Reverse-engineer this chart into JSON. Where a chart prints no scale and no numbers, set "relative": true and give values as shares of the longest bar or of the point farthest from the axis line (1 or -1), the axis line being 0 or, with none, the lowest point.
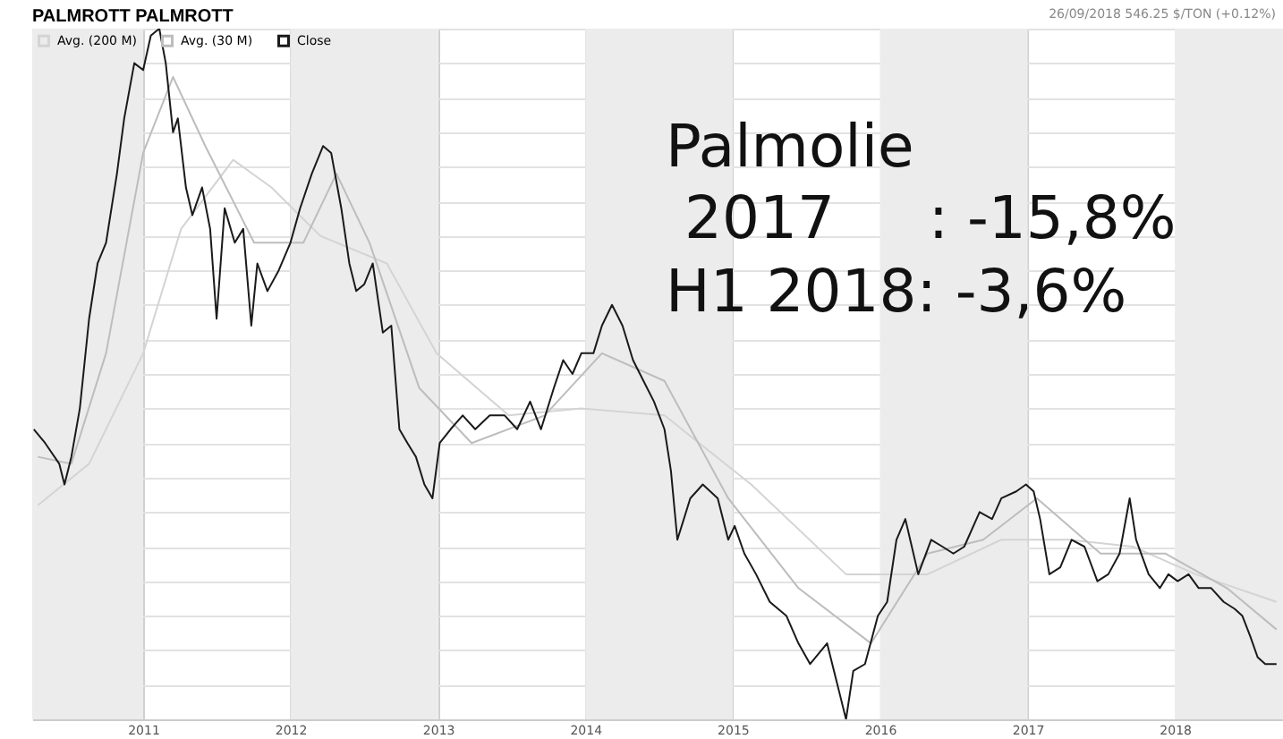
{
  "chart_data": {
    "type": "line",
    "title": "PALMROTT PALMROTT",
    "relative": true,
    "grid": true,
    "legend": "top left",
    "annotations": [
      "26/09/2018 546.25 $/TON (+0.12%)",
      "Palmolie",
      " 2017     : -15,8%",
      "H1 2018: -3,6%"
    ],
    "xlim": [
      "2010-04-01",
      "2018-09-26"
    ],
    "xticks": [
      {
        "value": "2011-01-01",
        "label": "2011"
      },
      {
        "value": "2012-01-01",
        "label": "2012"
      },
      {
        "value": "2013-01-01",
        "label": "2013"
      },
      {
        "value": "2014-01-01",
        "label": "2014"
      },
      {
        "value": "2015-01-01",
        "label": "2015"
      },
      {
        "value": "2016-01-01",
        "label": "2016"
      },
      {
        "value": "2017-01-01",
        "label": "2017"
      },
      {
        "value": "2018-01-01",
        "label": "2018"
      }
    ],
    "bands": [
      {
        "axis": "x",
        "from": "2010-04-01",
        "to": "2011-01-01",
        "color": "#ececec"
      },
      {
        "axis": "x",
        "from": "2012-01-01",
        "to": "2013-01-01",
        "color": "#ececec"
      },
      {
        "axis": "x",
        "from": "2014-01-01",
        "to": "2015-01-01",
        "color": "#ececec"
      },
      {
        "axis": "x",
        "from": "2016-01-01",
        "to": "2017-01-01",
        "color": "#ececec"
      },
      {
        "axis": "x",
        "from": "2018-01-01",
        "to": "2018-09-26",
        "color": "#ececec"
      }
    ],
    "series": [
      {
        "name": "Avg. (200 M)",
        "color": "#d4d4d4",
        "x": [
          "2010-04-15",
          "2010-08-20",
          "2011-01-01",
          "2011-04-05",
          "2011-08-12",
          "2011-11-15",
          "2012-03-15",
          "2012-08-27",
          "2012-12-28",
          "2013-06-25",
          "2013-12-22",
          "2014-07-16",
          "2015-02-16",
          "2015-10-09",
          "2016-04-28",
          "2016-10-28",
          "2017-04-12",
          "2017-09-19",
          "2018-02-22",
          "2018-09-10"
        ],
        "values": [
          0.31,
          0.37,
          0.53,
          0.71,
          0.81,
          0.77,
          0.7,
          0.66,
          0.53,
          0.44,
          0.45,
          0.44,
          0.34,
          0.21,
          0.21,
          0.26,
          0.26,
          0.25,
          0.21,
          0.17
        ]
      },
      {
        "name": "Avg. (30 M)",
        "color": "#bdbdbd",
        "x": [
          "2010-04-15",
          "2010-07-07",
          "2010-10-01",
          "2011-01-01",
          "2011-03-16",
          "2011-06-04",
          "2011-10-03",
          "2012-02-02",
          "2012-04-24",
          "2012-07-15",
          "2012-11-15",
          "2013-03-25",
          "2013-09-22",
          "2014-02-11",
          "2014-07-16",
          "2014-12-21",
          "2015-06-13",
          "2015-12-10",
          "2016-04-28",
          "2016-09-13",
          "2017-01-24",
          "2017-07-01",
          "2017-12-08",
          "2018-05-10",
          "2018-09-10"
        ],
        "values": [
          0.38,
          0.37,
          0.53,
          0.82,
          0.93,
          0.83,
          0.69,
          0.69,
          0.79,
          0.69,
          0.48,
          0.4,
          0.44,
          0.53,
          0.49,
          0.32,
          0.19,
          0.11,
          0.24,
          0.26,
          0.32,
          0.24,
          0.24,
          0.19,
          0.13
        ]
      },
      {
        "name": "Close",
        "color": "#1a1a1a",
        "x": [
          "2010-04-05",
          "2010-05-03",
          "2010-06-07",
          "2010-06-20",
          "2010-07-07",
          "2010-07-28",
          "2010-08-20",
          "2010-09-10",
          "2010-10-01",
          "2010-10-28",
          "2010-11-15",
          "2010-12-10",
          "2011-01-01",
          "2011-01-20",
          "2011-02-10",
          "2011-02-26",
          "2011-03-16",
          "2011-03-28",
          "2011-04-17",
          "2011-05-03",
          "2011-05-27",
          "2011-06-16",
          "2011-07-02",
          "2011-07-22",
          "2011-08-16",
          "2011-09-06",
          "2011-09-26",
          "2011-10-11",
          "2011-11-05",
          "2011-12-03",
          "2012-01-01",
          "2012-01-25",
          "2012-02-23",
          "2012-03-22",
          "2012-04-11",
          "2012-05-06",
          "2012-05-26",
          "2012-06-12",
          "2012-07-02",
          "2012-07-23",
          "2012-08-17",
          "2012-09-07",
          "2012-09-27",
          "2012-10-17",
          "2012-11-07",
          "2012-11-28",
          "2012-12-18",
          "2013-01-05",
          "2013-02-01",
          "2013-03-03",
          "2013-04-03",
          "2013-05-09",
          "2013-06-15",
          "2013-07-16",
          "2013-08-17",
          "2013-09-13",
          "2013-10-15",
          "2013-11-07",
          "2013-11-30",
          "2013-12-22",
          "2014-01-21",
          "2014-02-11",
          "2014-03-08",
          "2014-04-03",
          "2014-04-29",
          "2014-05-25",
          "2014-06-20",
          "2014-07-16",
          "2014-08-01",
          "2014-08-17",
          "2014-09-18",
          "2014-10-19",
          "2014-11-25",
          "2014-12-21",
          "2015-01-06",
          "2015-01-30",
          "2015-02-28",
          "2015-04-03",
          "2015-05-14",
          "2015-06-13",
          "2015-07-12",
          "2015-08-23",
          "2015-09-22",
          "2015-10-09",
          "2015-10-27",
          "2015-11-25",
          "2015-12-27",
          "2016-01-19",
          "2016-02-11",
          "2016-03-04",
          "2016-04-05",
          "2016-05-07",
          "2016-06-04",
          "2016-07-01",
          "2016-07-28",
          "2016-09-04",
          "2016-10-05",
          "2016-10-28",
          "2016-12-04",
          "2016-12-28",
          "2017-01-16",
          "2017-02-01",
          "2017-02-24",
          "2017-03-23",
          "2017-04-20",
          "2017-05-22",
          "2017-06-23",
          "2017-07-20",
          "2017-08-17",
          "2017-09-11",
          "2017-09-27",
          "2017-10-28",
          "2017-11-25",
          "2017-12-16",
          "2018-01-08",
          "2018-02-04",
          "2018-03-01",
          "2018-04-01",
          "2018-05-02",
          "2018-05-29",
          "2018-06-17",
          "2018-07-07",
          "2018-07-25",
          "2018-08-13",
          "2018-09-10"
        ],
        "values": [
          0.42,
          0.4,
          0.37,
          0.34,
          0.38,
          0.45,
          0.58,
          0.66,
          0.69,
          0.79,
          0.87,
          0.95,
          0.94,
          0.99,
          1.0,
          0.95,
          0.85,
          0.87,
          0.77,
          0.73,
          0.77,
          0.71,
          0.58,
          0.74,
          0.69,
          0.71,
          0.57,
          0.66,
          0.62,
          0.65,
          0.69,
          0.74,
          0.79,
          0.83,
          0.82,
          0.74,
          0.66,
          0.62,
          0.63,
          0.66,
          0.56,
          0.57,
          0.42,
          0.4,
          0.38,
          0.34,
          0.32,
          0.4,
          0.42,
          0.44,
          0.42,
          0.44,
          0.44,
          0.42,
          0.46,
          0.42,
          0.48,
          0.52,
          0.5,
          0.53,
          0.53,
          0.57,
          0.6,
          0.57,
          0.52,
          0.49,
          0.46,
          0.42,
          0.36,
          0.26,
          0.32,
          0.34,
          0.32,
          0.26,
          0.28,
          0.24,
          0.21,
          0.17,
          0.15,
          0.11,
          0.08,
          0.11,
          0.04,
          0.0,
          0.07,
          0.08,
          0.15,
          0.17,
          0.26,
          0.29,
          0.21,
          0.26,
          0.25,
          0.24,
          0.25,
          0.3,
          0.29,
          0.32,
          0.33,
          0.34,
          0.33,
          0.29,
          0.21,
          0.22,
          0.26,
          0.25,
          0.2,
          0.21,
          0.24,
          0.32,
          0.26,
          0.21,
          0.19,
          0.21,
          0.2,
          0.21,
          0.19,
          0.19,
          0.17,
          0.16,
          0.15,
          0.12,
          0.09,
          0.08,
          0.08
        ]
      }
    ]
  }
}
